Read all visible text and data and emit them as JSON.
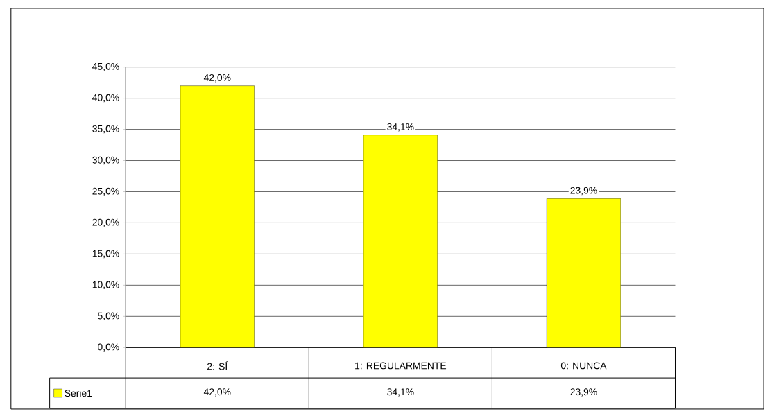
{
  "chart_data": {
    "type": "bar",
    "categories": [
      "2: SÍ",
      "1: REGULARMENTE",
      "0: NUNCA"
    ],
    "series": [
      {
        "name": "Serie1",
        "color": "#ffff00",
        "values": [
          42.0,
          34.1,
          23.9
        ],
        "value_labels": [
          "42,0%",
          "34,1%",
          "23,9%"
        ]
      }
    ],
    "ylim": [
      0,
      45
    ],
    "yticks": [
      {
        "value": 0,
        "label": "0,0%"
      },
      {
        "value": 5,
        "label": "5,0%"
      },
      {
        "value": 10,
        "label": "10,0%"
      },
      {
        "value": 15,
        "label": "15,0%"
      },
      {
        "value": 20,
        "label": "20,0%"
      },
      {
        "value": 25,
        "label": "25,0%"
      },
      {
        "value": 30,
        "label": "30,0%"
      },
      {
        "value": 35,
        "label": "35,0%"
      },
      {
        "value": 40,
        "label": "40,0%"
      },
      {
        "value": 45,
        "label": "45,0%"
      }
    ],
    "grid": "y",
    "legend": "bottom left"
  }
}
